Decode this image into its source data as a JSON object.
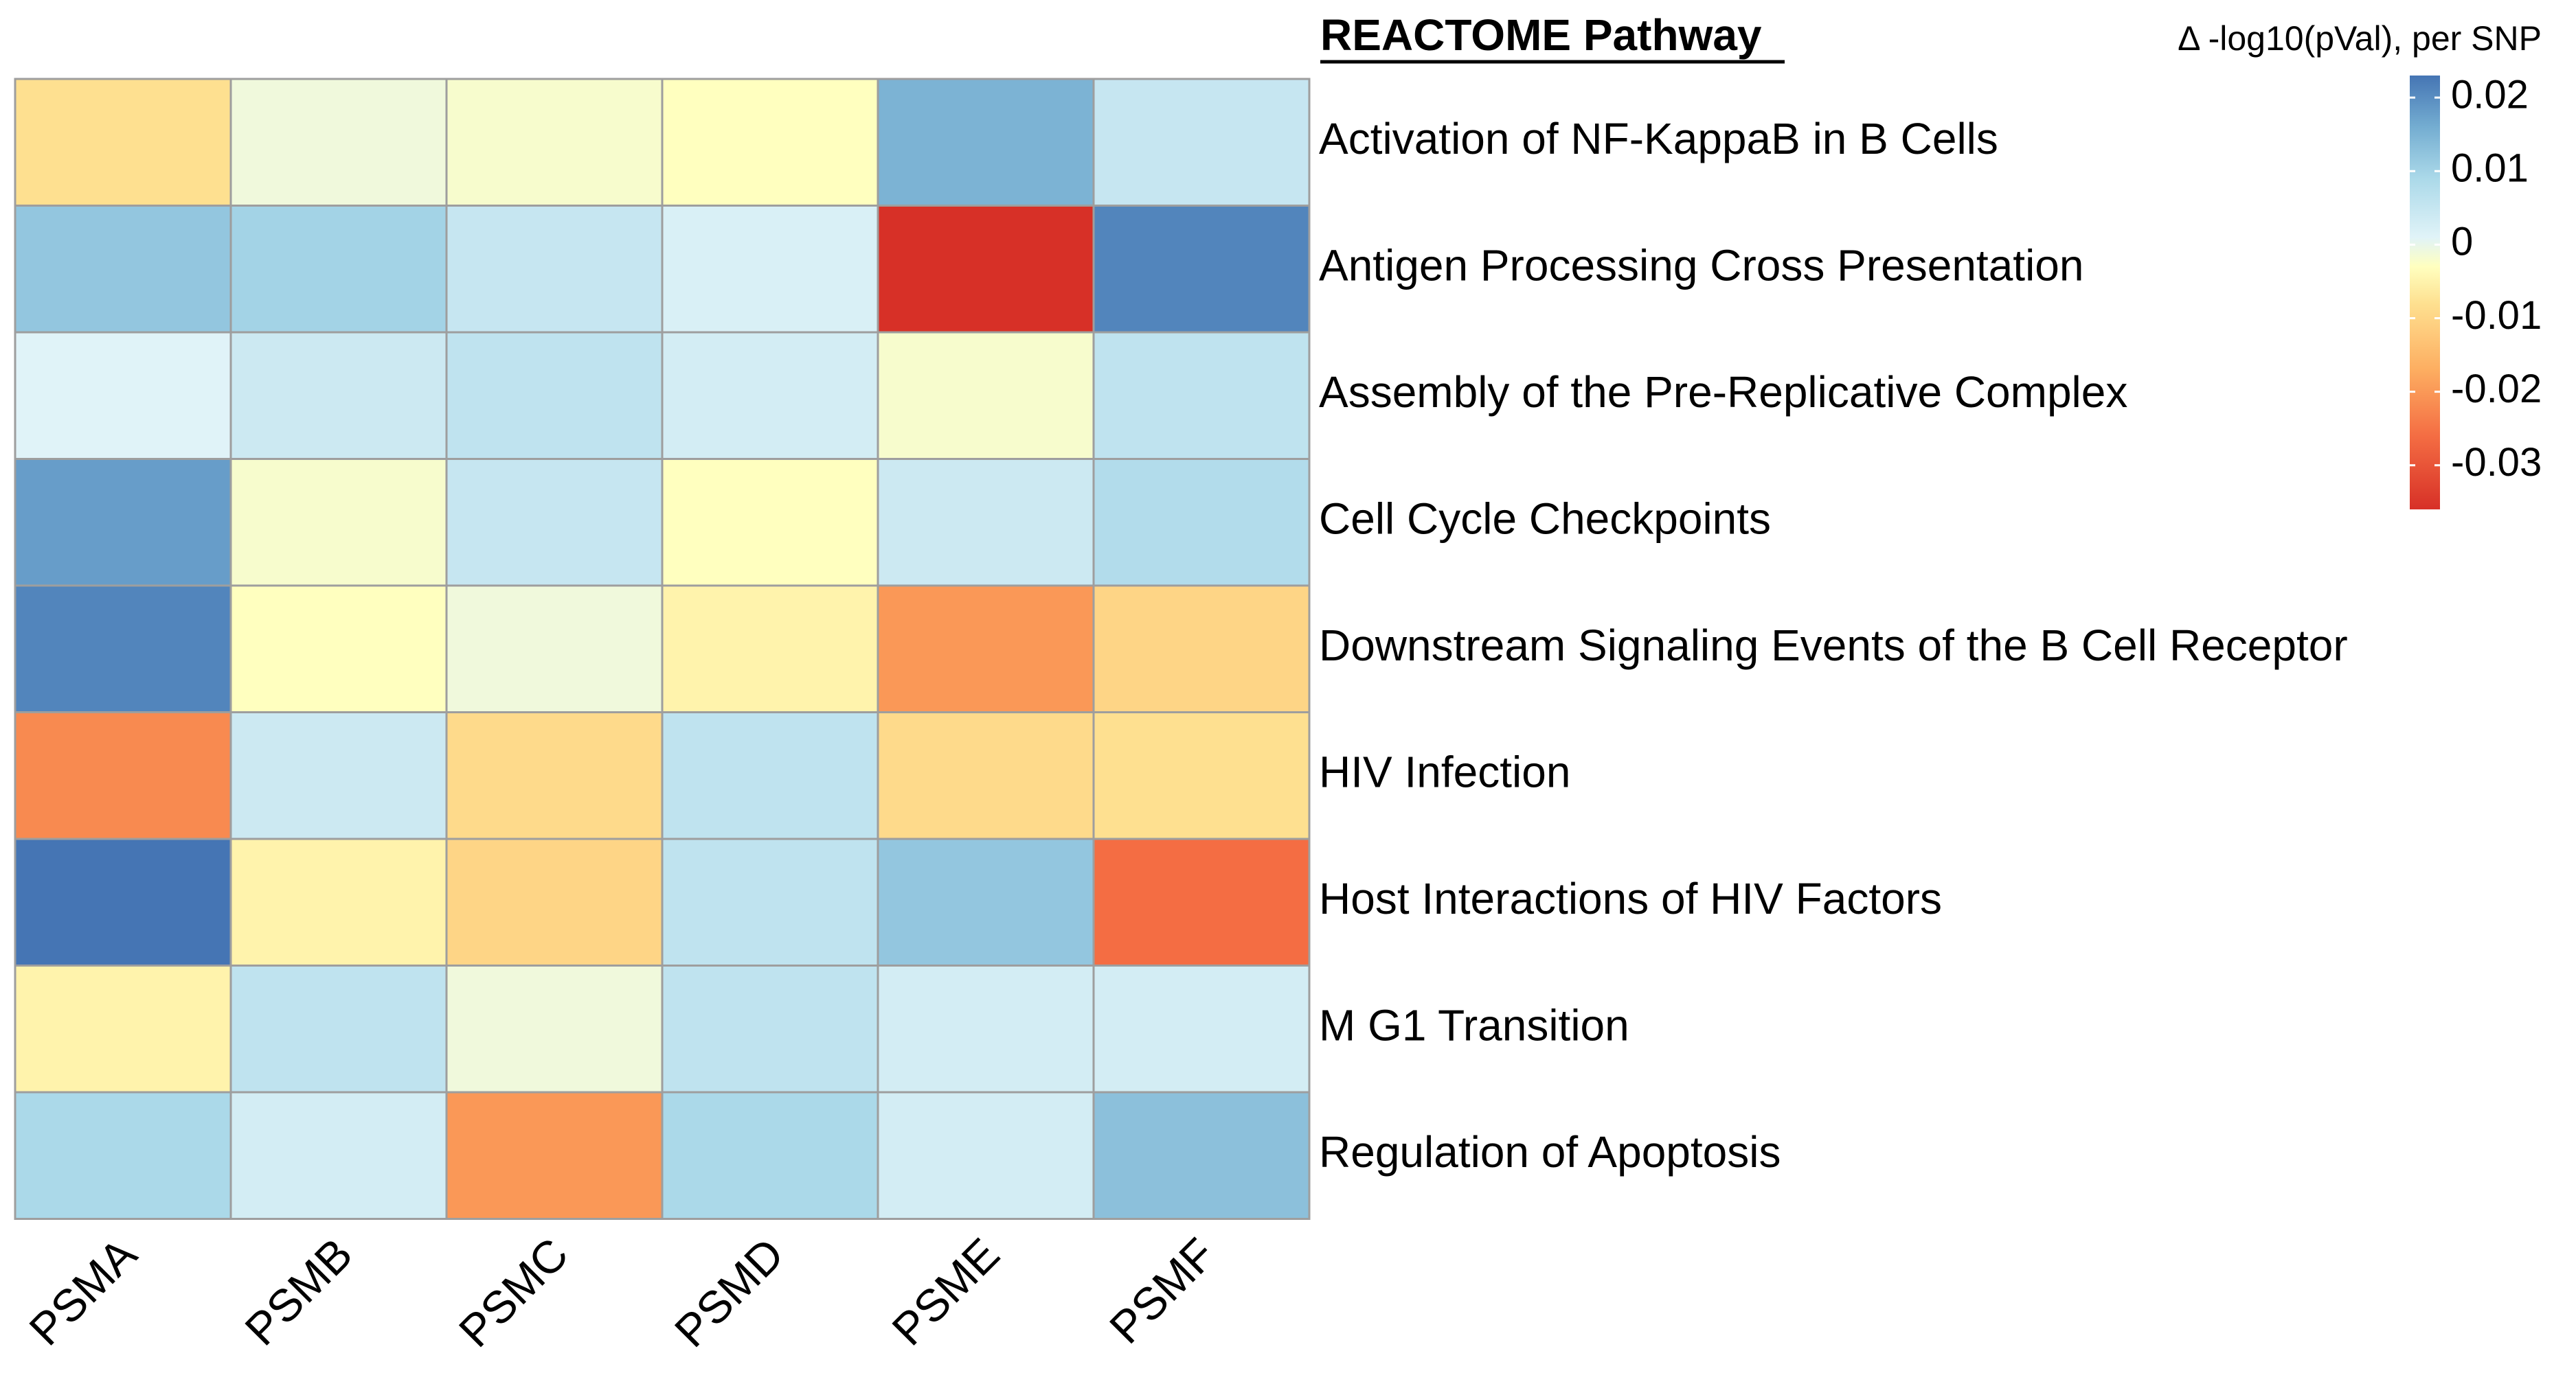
{
  "chart_data": {
    "type": "heatmap",
    "title": "REACTOME Pathway",
    "legend_title": "Δ -log10(pVal), per SNP",
    "columns": [
      "PSMA",
      "PSMB",
      "PSMC",
      "PSMD",
      "PSME",
      "PSMF"
    ],
    "rows": [
      "Activation of NF-KappaB in B Cells",
      "Antigen Processing Cross Presentation",
      "Assembly of the Pre-Replicative Complex",
      "Cell Cycle Checkpoints",
      "Downstream Signaling Events of the B Cell Receptor",
      "HIV Infection",
      "Host Interactions of HIV Factors",
      "M G1 Transition",
      "Regulation of Apoptosis"
    ],
    "values": [
      [
        -0.008,
        -0.001,
        -0.002,
        -0.003,
        0.015,
        0.005
      ],
      [
        0.012,
        0.01,
        0.005,
        0.002,
        -0.036,
        0.021
      ],
      [
        0.001,
        0.004,
        0.006,
        0.003,
        -0.002,
        0.006
      ],
      [
        0.018,
        -0.002,
        0.005,
        -0.003,
        0.004,
        0.008
      ],
      [
        0.021,
        -0.003,
        -0.001,
        -0.005,
        -0.02,
        -0.01
      ],
      [
        -0.022,
        0.004,
        -0.009,
        0.006,
        -0.009,
        -0.008
      ],
      [
        0.023,
        -0.005,
        -0.01,
        0.006,
        0.012,
        -0.026
      ],
      [
        -0.005,
        0.006,
        -0.001,
        0.006,
        0.003,
        0.003
      ],
      [
        0.009,
        0.003,
        -0.02,
        0.009,
        0.003,
        0.013
      ]
    ],
    "color_scale": {
      "min": -0.036,
      "max": 0.023,
      "stops": [
        {
          "value": -0.036,
          "color": "#d73027"
        },
        {
          "value": -0.026,
          "color": "#f46d43"
        },
        {
          "value": -0.017,
          "color": "#fdae61"
        },
        {
          "value": -0.008,
          "color": "#fee090"
        },
        {
          "value": -0.003,
          "color": "#ffffbf"
        },
        {
          "value": 0.001,
          "color": "#e0f3f8"
        },
        {
          "value": 0.009,
          "color": "#abd9e9"
        },
        {
          "value": 0.016,
          "color": "#74add1"
        },
        {
          "value": 0.023,
          "color": "#4575b4"
        }
      ],
      "ticks": [
        0.02,
        0.01,
        0,
        -0.01,
        -0.02,
        -0.03
      ]
    }
  }
}
